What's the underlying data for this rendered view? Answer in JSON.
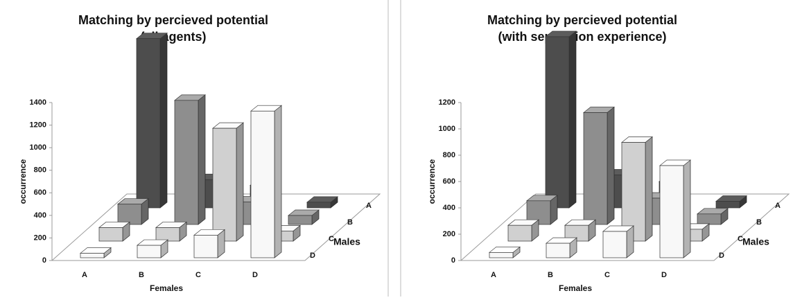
{
  "chart_data": [
    {
      "type": "bar3d",
      "title": [
        "Matching by percieved potential",
        "(all agents)"
      ],
      "x_label": "Females",
      "y_label": "occurrence",
      "z_label": "Males",
      "categories": [
        "A",
        "B",
        "C",
        "D"
      ],
      "ylim": [
        0,
        1400
      ],
      "yticks": [
        0,
        200,
        400,
        600,
        800,
        1000,
        1200,
        1400
      ],
      "series": [
        {
          "name": "A",
          "color": "#4d4d4d",
          "values": [
            1500,
            250,
            200,
            50
          ]
        },
        {
          "name": "B",
          "color": "#8e8e8e",
          "values": [
            180,
            1100,
            200,
            80
          ]
        },
        {
          "name": "C",
          "color": "#d0d0d0",
          "values": [
            120,
            120,
            1000,
            90
          ]
        },
        {
          "name": "D",
          "color": "#f8f8f8",
          "values": [
            40,
            110,
            200,
            1300
          ]
        }
      ]
    },
    {
      "type": "bar3d",
      "title": [
        "Matching by percieved potential",
        "(with separation experience)"
      ],
      "x_label": "Females",
      "y_label": "occurrence",
      "z_label": "Males",
      "categories": [
        "A",
        "B",
        "C",
        "D"
      ],
      "ylim": [
        0,
        1200
      ],
      "yticks": [
        0,
        200,
        400,
        600,
        800,
        1000,
        1200
      ],
      "series": [
        {
          "name": "A",
          "color": "#4d4d4d",
          "values": [
            1300,
            250,
            200,
            50
          ]
        },
        {
          "name": "B",
          "color": "#8e8e8e",
          "values": [
            180,
            850,
            200,
            80
          ]
        },
        {
          "name": "C",
          "color": "#d0d0d0",
          "values": [
            120,
            120,
            750,
            90
          ]
        },
        {
          "name": "D",
          "color": "#f8f8f8",
          "values": [
            40,
            110,
            200,
            700
          ]
        }
      ]
    }
  ]
}
